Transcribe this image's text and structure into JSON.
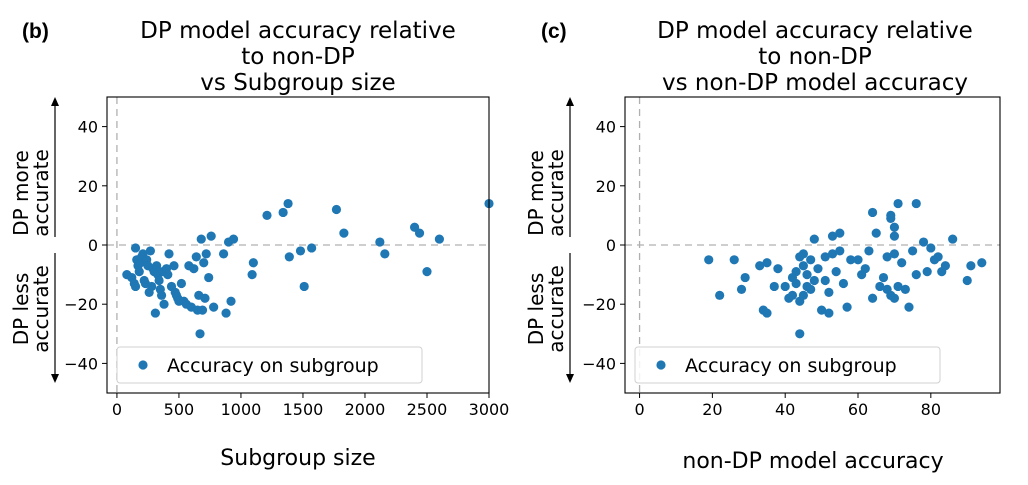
{
  "chart_data": [
    {
      "type": "scatter",
      "panel_label": "(b)",
      "title_lines": [
        "DP model accuracy relative",
        "to non-DP",
        "vs Subgroup size"
      ],
      "xlabel": "Subgroup size",
      "ylabel_upper": [
        "DP more",
        "accurate"
      ],
      "ylabel_lower": [
        "DP less",
        "accurate"
      ],
      "xlim": [
        -80,
        3000
      ],
      "ylim": [
        -50,
        50
      ],
      "xticks": [
        0,
        500,
        1000,
        1500,
        2000,
        2500,
        3000
      ],
      "yticks": [
        -40,
        -20,
        0,
        20,
        40
      ],
      "xtick_labels": [
        "0",
        "500",
        "1000",
        "1500",
        "2000",
        "2500",
        "3000"
      ],
      "ytick_labels": [
        "−40",
        "−20",
        "0",
        "20",
        "40"
      ],
      "legend": {
        "label": "Accuracy on subgroup",
        "position": "lower-left"
      },
      "marker_color": "#1f77b4",
      "reference_lines": {
        "x": 0,
        "y": 0
      },
      "points": [
        [
          80,
          -10
        ],
        [
          120,
          -11
        ],
        [
          140,
          -13
        ],
        [
          150,
          -14
        ],
        [
          160,
          -5
        ],
        [
          150,
          -1
        ],
        [
          170,
          -7
        ],
        [
          180,
          -9
        ],
        [
          190,
          -6
        ],
        [
          200,
          -4
        ],
        [
          210,
          -3
        ],
        [
          220,
          -12
        ],
        [
          230,
          -13
        ],
        [
          240,
          -5
        ],
        [
          250,
          -7
        ],
        [
          260,
          -16
        ],
        [
          270,
          -2
        ],
        [
          280,
          -14
        ],
        [
          290,
          -8
        ],
        [
          300,
          -9
        ],
        [
          310,
          -23
        ],
        [
          320,
          -7
        ],
        [
          330,
          -10
        ],
        [
          340,
          -12
        ],
        [
          350,
          -15
        ],
        [
          360,
          -17
        ],
        [
          370,
          -9
        ],
        [
          380,
          -20
        ],
        [
          400,
          -8
        ],
        [
          410,
          -10
        ],
        [
          420,
          -3
        ],
        [
          440,
          -14
        ],
        [
          460,
          -7
        ],
        [
          470,
          -16
        ],
        [
          480,
          -17
        ],
        [
          490,
          -18
        ],
        [
          500,
          -19
        ],
        [
          520,
          -13
        ],
        [
          540,
          -19
        ],
        [
          560,
          -20
        ],
        [
          580,
          -7
        ],
        [
          600,
          -21
        ],
        [
          620,
          -8
        ],
        [
          640,
          -4
        ],
        [
          650,
          -22
        ],
        [
          660,
          -17
        ],
        [
          670,
          -30
        ],
        [
          680,
          2
        ],
        [
          690,
          -22
        ],
        [
          700,
          -6
        ],
        [
          710,
          -18
        ],
        [
          720,
          -3
        ],
        [
          740,
          -11
        ],
        [
          760,
          3
        ],
        [
          780,
          -21
        ],
        [
          860,
          -3
        ],
        [
          880,
          -23
        ],
        [
          900,
          1
        ],
        [
          920,
          -19
        ],
        [
          940,
          2
        ],
        [
          1090,
          -10
        ],
        [
          1100,
          -6
        ],
        [
          1210,
          10
        ],
        [
          1340,
          11
        ],
        [
          1380,
          14
        ],
        [
          1390,
          -4
        ],
        [
          1480,
          -2
        ],
        [
          1510,
          -14
        ],
        [
          1570,
          -1
        ],
        [
          1770,
          12
        ],
        [
          1830,
          4
        ],
        [
          2120,
          1
        ],
        [
          2160,
          -3
        ],
        [
          2400,
          6
        ],
        [
          2440,
          4
        ],
        [
          2500,
          -9
        ],
        [
          2600,
          2
        ],
        [
          3000,
          14
        ]
      ]
    },
    {
      "type": "scatter",
      "panel_label": "(c)",
      "title_lines": [
        "DP model accuracy relative",
        "to non-DP",
        "vs non-DP model accuracy"
      ],
      "xlabel": "non-DP model accuracy",
      "ylabel_upper": [
        "DP more",
        "accurate"
      ],
      "ylabel_lower": [
        "DP less",
        "accurate"
      ],
      "xlim": [
        -4,
        99
      ],
      "ylim": [
        -50,
        50
      ],
      "xticks": [
        0,
        20,
        40,
        60,
        80
      ],
      "yticks": [
        -40,
        -20,
        0,
        20,
        40
      ],
      "xtick_labels": [
        "0",
        "20",
        "40",
        "60",
        "80"
      ],
      "ytick_labels": [
        "−40",
        "−20",
        "0",
        "20",
        "40"
      ],
      "legend": {
        "label": "Accuracy on subgroup",
        "position": "lower-left"
      },
      "marker_color": "#1f77b4",
      "reference_lines": {
        "x": 0,
        "y": 0
      },
      "points": [
        [
          19,
          -5
        ],
        [
          22,
          -17
        ],
        [
          26,
          -5
        ],
        [
          28,
          -15
        ],
        [
          29,
          -11
        ],
        [
          33,
          -7
        ],
        [
          34,
          -22
        ],
        [
          35,
          -23
        ],
        [
          35,
          -6
        ],
        [
          37,
          -14
        ],
        [
          38,
          -8
        ],
        [
          40,
          -14
        ],
        [
          41,
          -18
        ],
        [
          42,
          -11
        ],
        [
          42,
          -17
        ],
        [
          43,
          -9
        ],
        [
          43,
          -13
        ],
        [
          44,
          -30
        ],
        [
          44,
          -19
        ],
        [
          44,
          -4
        ],
        [
          45,
          -17
        ],
        [
          45,
          -7
        ],
        [
          45,
          -3
        ],
        [
          46,
          -14
        ],
        [
          46,
          -10
        ],
        [
          47,
          -15
        ],
        [
          47,
          -5
        ],
        [
          48,
          2
        ],
        [
          48,
          -12
        ],
        [
          49,
          -8
        ],
        [
          50,
          -22
        ],
        [
          51,
          -4
        ],
        [
          51,
          -12
        ],
        [
          52,
          -16
        ],
        [
          52,
          -23
        ],
        [
          53,
          3
        ],
        [
          53,
          -3
        ],
        [
          54,
          -9
        ],
        [
          55,
          -2
        ],
        [
          55,
          4
        ],
        [
          56,
          -13
        ],
        [
          57,
          -21
        ],
        [
          58,
          -5
        ],
        [
          60,
          -5
        ],
        [
          61,
          -10
        ],
        [
          62,
          -8
        ],
        [
          63,
          -2
        ],
        [
          64,
          11
        ],
        [
          64,
          -18
        ],
        [
          65,
          4
        ],
        [
          66,
          -14
        ],
        [
          67,
          -11
        ],
        [
          68,
          -15
        ],
        [
          68,
          -4
        ],
        [
          69,
          -17
        ],
        [
          69,
          10
        ],
        [
          69,
          9
        ],
        [
          70,
          6
        ],
        [
          70,
          3
        ],
        [
          70,
          -18
        ],
        [
          70,
          -3
        ],
        [
          71,
          14
        ],
        [
          71,
          -14
        ],
        [
          72,
          -6
        ],
        [
          73,
          -15
        ],
        [
          74,
          -21
        ],
        [
          75,
          -2
        ],
        [
          76,
          14
        ],
        [
          76,
          -10
        ],
        [
          78,
          1
        ],
        [
          79,
          -9
        ],
        [
          80,
          -1
        ],
        [
          81,
          -5
        ],
        [
          82,
          -4
        ],
        [
          83,
          -9
        ],
        [
          84,
          -7
        ],
        [
          86,
          2
        ],
        [
          90,
          -12
        ],
        [
          91,
          -7
        ],
        [
          94,
          -6
        ]
      ]
    }
  ]
}
